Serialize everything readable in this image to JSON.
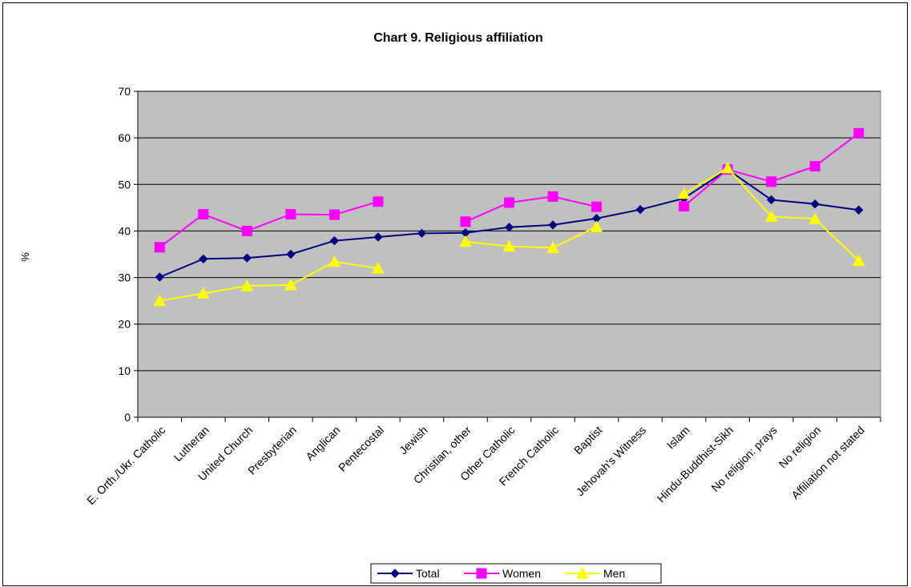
{
  "chart_data": {
    "type": "line",
    "title": "Chart 9. Religious affiliation",
    "ylabel": "%",
    "xlabel": "",
    "ylim": [
      0,
      70
    ],
    "yticks": [
      0,
      10,
      20,
      30,
      40,
      50,
      60,
      70
    ],
    "grid": "horizontal",
    "plot_background": "#C0C0C0",
    "legend_position": "bottom",
    "categories": [
      "E. Orth./Ukr. Catholic",
      "Lutheran",
      "United Church",
      "Presbyterian",
      "Anglican",
      "Pentecostal",
      "Jewish",
      "Christian, other",
      "Other Catholic",
      "French Catholic",
      "Baptist",
      "Jehovah's Witness",
      "Islam",
      "Hindu-Buddhist-Sikh",
      "No religion: prays",
      "No religion",
      "Affiliation not stated"
    ],
    "series": [
      {
        "name": "Total",
        "color": "#000080",
        "marker": "diamond",
        "values": [
          30.1,
          34.0,
          34.2,
          35.0,
          37.9,
          38.7,
          39.5,
          39.6,
          40.8,
          41.3,
          42.7,
          44.6,
          47.0,
          53.2,
          46.7,
          45.8,
          44.5
        ]
      },
      {
        "name": "Women",
        "color": "#FF00FF",
        "marker": "square",
        "values": [
          36.5,
          43.6,
          40.0,
          43.6,
          43.5,
          46.3,
          null,
          42.0,
          46.1,
          47.4,
          45.2,
          null,
          45.3,
          53.2,
          50.6,
          53.9,
          61.0
        ]
      },
      {
        "name": "Men",
        "color": "#FFFF00",
        "marker": "triangle",
        "values": [
          25.0,
          26.6,
          28.2,
          28.4,
          33.4,
          32.0,
          null,
          37.7,
          36.7,
          36.4,
          40.9,
          null,
          48.0,
          53.5,
          43.1,
          42.6,
          33.6
        ]
      }
    ]
  }
}
